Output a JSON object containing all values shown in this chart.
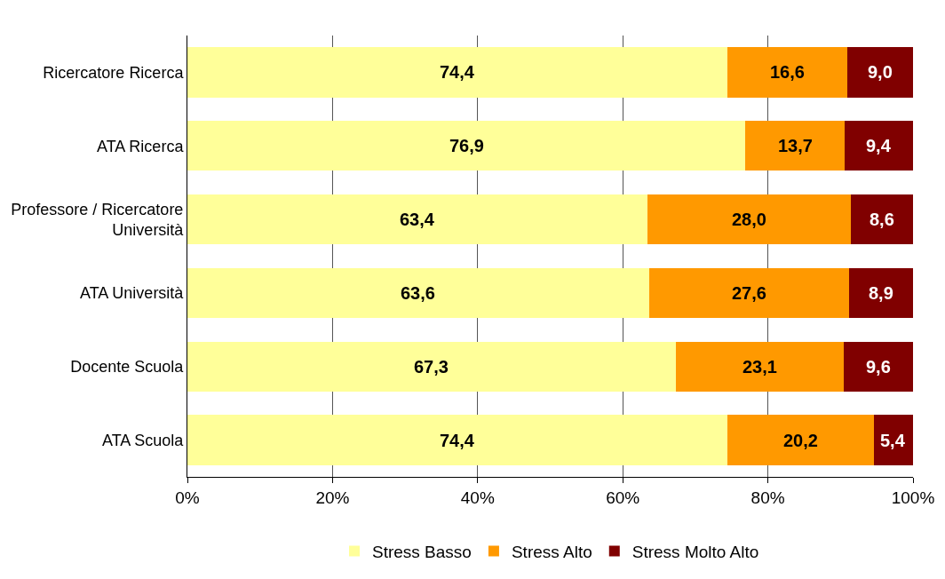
{
  "chart_data": {
    "type": "bar",
    "orientation": "horizontal",
    "stacked": true,
    "categories": [
      "Ricercatore Ricerca",
      "ATA Ricerca",
      "Professore / Ricercatore Università",
      "ATA Università",
      "Docente Scuola",
      "ATA Scuola"
    ],
    "series": [
      {
        "name": "Stress Basso",
        "color": "#ffff99",
        "values": [
          74.4,
          76.9,
          63.4,
          63.6,
          67.3,
          74.4
        ],
        "value_labels": [
          "74,4",
          "76,9",
          "63,4",
          "63,6",
          "67,3",
          "74,4"
        ]
      },
      {
        "name": "Stress Alto",
        "color": "#ff9900",
        "values": [
          16.6,
          13.7,
          28.0,
          27.6,
          23.1,
          20.2
        ],
        "value_labels": [
          "16,6",
          "13,7",
          "28,0",
          "27,6",
          "23,1",
          "20,2"
        ]
      },
      {
        "name": "Stress Molto Alto",
        "color": "#800000",
        "values": [
          9.0,
          9.4,
          8.6,
          8.9,
          9.6,
          5.4
        ],
        "value_labels": [
          "9,0",
          "9,4",
          "8,6",
          "8,9",
          "9,6",
          "5,4"
        ]
      }
    ],
    "xlim": [
      0,
      100
    ],
    "xticks": [
      {
        "value": 0,
        "label": "0%"
      },
      {
        "value": 20,
        "label": "20%"
      },
      {
        "value": 40,
        "label": "40%"
      },
      {
        "value": 60,
        "label": "60%"
      },
      {
        "value": 80,
        "label": "80%"
      },
      {
        "value": 100,
        "label": "100%"
      }
    ],
    "grid": "x",
    "legend": "bottom"
  }
}
